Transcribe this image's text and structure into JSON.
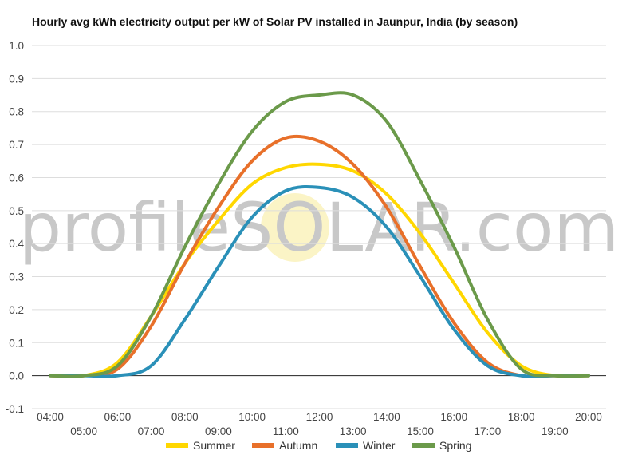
{
  "watermark": "profileSOLAR.com",
  "chart_data": {
    "type": "line",
    "title": "Hourly avg kWh electricity output per kW of Solar PV installed in Jaunpur, India (by season)",
    "xlabel": "",
    "ylabel": "",
    "x": [
      "04:00",
      "05:00",
      "06:00",
      "07:00",
      "08:00",
      "09:00",
      "10:00",
      "11:00",
      "12:00",
      "13:00",
      "14:00",
      "15:00",
      "16:00",
      "17:00",
      "18:00",
      "19:00",
      "20:00"
    ],
    "ylim": [
      -0.1,
      1.0
    ],
    "yticks": [
      "1.0",
      "0.9",
      "0.8",
      "0.7",
      "0.6",
      "0.5",
      "0.4",
      "0.3",
      "0.2",
      "0.1",
      "0.0",
      "-0.1"
    ],
    "ytick_values": [
      1.0,
      0.9,
      0.8,
      0.7,
      0.6,
      0.5,
      0.4,
      0.3,
      0.2,
      0.1,
      0.0,
      -0.1
    ],
    "grid": true,
    "legend_position": "bottom",
    "series": [
      {
        "name": "Summer",
        "color": "#ffd700",
        "values": [
          0.0,
          0.0,
          0.04,
          0.18,
          0.34,
          0.47,
          0.58,
          0.63,
          0.64,
          0.62,
          0.55,
          0.43,
          0.28,
          0.13,
          0.03,
          0.0,
          0.0
        ]
      },
      {
        "name": "Autumn",
        "color": "#e8702a",
        "values": [
          0.0,
          0.0,
          0.02,
          0.15,
          0.34,
          0.51,
          0.65,
          0.72,
          0.71,
          0.64,
          0.51,
          0.33,
          0.16,
          0.04,
          0.0,
          0.0,
          0.0
        ]
      },
      {
        "name": "Winter",
        "color": "#2a90b8",
        "values": [
          0.0,
          0.0,
          0.0,
          0.03,
          0.17,
          0.33,
          0.48,
          0.56,
          0.57,
          0.54,
          0.45,
          0.3,
          0.14,
          0.03,
          0.0,
          0.0,
          0.0
        ]
      },
      {
        "name": "Spring",
        "color": "#6b9a4a",
        "values": [
          0.0,
          0.0,
          0.03,
          0.18,
          0.39,
          0.58,
          0.74,
          0.83,
          0.85,
          0.85,
          0.77,
          0.59,
          0.39,
          0.17,
          0.02,
          0.0,
          0.0
        ]
      }
    ]
  }
}
